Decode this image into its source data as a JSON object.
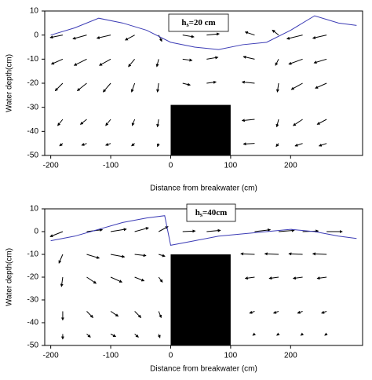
{
  "chart_data": [
    {
      "type": "quiver",
      "annotation": {
        "base": "h",
        "sub": "s",
        "text": "=20 cm"
      },
      "x_label": "Distance from breakwater (cm)",
      "y_label": "Water depth(cm)",
      "xlim": [
        -210,
        320
      ],
      "ylim": [
        -50,
        10
      ],
      "xticks": [
        -200,
        -100,
        0,
        100,
        200
      ],
      "yticks": [
        10,
        0,
        -10,
        -20,
        -30,
        -40,
        -50
      ],
      "surface": {
        "color": "#3b3bb5",
        "x": [
          -200,
          -160,
          -120,
          -80,
          -40,
          0,
          40,
          80,
          120,
          160,
          200,
          240,
          280,
          310
        ],
        "y": [
          0,
          3,
          7,
          5,
          2,
          -3,
          -5,
          -6,
          -4,
          -3,
          2,
          8,
          5,
          4
        ]
      },
      "structure": {
        "x": [
          0,
          100
        ],
        "y": [
          -50,
          -29
        ],
        "color": "#000000"
      },
      "vectors": {
        "color": "#000000",
        "x": [
          -180,
          -140,
          -100,
          -60,
          -20,
          20,
          60,
          140,
          180,
          220,
          260,
          -180,
          -140,
          -100,
          -60,
          -20,
          20,
          60,
          140,
          180,
          220,
          260,
          -180,
          -140,
          -100,
          -60,
          -20,
          20,
          60,
          140,
          180,
          220,
          260,
          -180,
          -140,
          -100,
          -60,
          -20,
          140,
          180,
          220,
          260,
          -180,
          -140,
          -100,
          -60,
          -20,
          140,
          180,
          220,
          260
        ],
        "y": [
          0,
          0,
          0,
          0,
          0,
          0,
          0,
          0,
          0,
          0,
          0,
          -10,
          -10,
          -10,
          -10,
          -10,
          -10,
          -10,
          -10,
          -10,
          -10,
          -10,
          -20,
          -20,
          -20,
          -20,
          -20,
          -20,
          -20,
          -20,
          -20,
          -20,
          -20,
          -35,
          -35,
          -35,
          -35,
          -35,
          -35,
          -35,
          -35,
          -35,
          -45,
          -45,
          -45,
          -45,
          -45,
          -45,
          -45,
          -45,
          -45
        ],
        "u": [
          -20,
          -22,
          -22,
          -15,
          5,
          18,
          20,
          -15,
          -10,
          -25,
          -22,
          -18,
          -20,
          -18,
          -10,
          -3,
          15,
          18,
          -18,
          -5,
          -22,
          -20,
          -12,
          -15,
          -12,
          -5,
          -2,
          12,
          15,
          -20,
          -2,
          -18,
          -18,
          -8,
          -10,
          -8,
          -4,
          -2,
          -20,
          -3,
          -15,
          -15,
          -5,
          -8,
          -8,
          -5,
          -2,
          -18,
          -4,
          -12,
          -12
        ],
        "v": [
          -4,
          -6,
          -5,
          -8,
          -10,
          -3,
          2,
          5,
          8,
          -6,
          -5,
          -8,
          -10,
          -10,
          -12,
          -12,
          -2,
          3,
          4,
          -10,
          -8,
          -6,
          -12,
          -12,
          -14,
          -14,
          -14,
          -3,
          2,
          2,
          -14,
          -10,
          -8,
          -10,
          -8,
          -10,
          -10,
          -12,
          -2,
          -12,
          -10,
          -8,
          -4,
          -3,
          -3,
          -4,
          -5,
          -1,
          -5,
          -4,
          -4
        ]
      }
    },
    {
      "type": "quiver",
      "annotation": {
        "base": "h",
        "sub": "s",
        "text": "=40cm"
      },
      "x_label": "Distance from breakwater (cm)",
      "y_label": "Water depth(cm)",
      "xlim": [
        -210,
        320
      ],
      "ylim": [
        -50,
        10
      ],
      "xticks": [
        -200,
        -100,
        0,
        100,
        200
      ],
      "yticks": [
        10,
        0,
        -10,
        -20,
        -30,
        -40,
        -50
      ],
      "surface": {
        "color": "#3b3bb5",
        "x": [
          -200,
          -160,
          -120,
          -80,
          -40,
          -10,
          0,
          40,
          80,
          120,
          160,
          200,
          240,
          280,
          310
        ],
        "y": [
          -4,
          -2,
          1,
          4,
          6,
          7,
          -6,
          -4,
          -2,
          -1,
          0,
          1,
          0,
          -2,
          -3
        ]
      },
      "structure": {
        "x": [
          0,
          100
        ],
        "y": [
          -50,
          -10
        ],
        "color": "#000000"
      },
      "vectors": {
        "color": "#000000",
        "x": [
          -180,
          -140,
          -100,
          -60,
          -20,
          20,
          60,
          140,
          180,
          220,
          260,
          -180,
          -140,
          -100,
          -60,
          -20,
          140,
          180,
          220,
          260,
          -180,
          -140,
          -100,
          -60,
          -20,
          140,
          180,
          220,
          260,
          -180,
          -140,
          -100,
          -60,
          -20,
          140,
          180,
          220,
          260,
          -180,
          -140,
          -100,
          -60,
          -20,
          140,
          180,
          220,
          260
        ],
        "y": [
          0,
          0,
          0,
          0,
          0,
          0,
          0,
          0,
          0,
          0,
          0,
          -10,
          -10,
          -10,
          -10,
          -10,
          -10,
          -10,
          -10,
          -10,
          -20,
          -20,
          -20,
          -20,
          -20,
          -20,
          -20,
          -20,
          -20,
          -35,
          -35,
          -35,
          -35,
          -35,
          -35,
          -35,
          -35,
          -35,
          -45,
          -45,
          -45,
          -45,
          -45,
          -45,
          -45,
          -45,
          -45
        ],
        "u": [
          -20,
          25,
          25,
          22,
          15,
          20,
          22,
          25,
          25,
          25,
          25,
          -6,
          20,
          22,
          18,
          10,
          -22,
          -22,
          -22,
          -22,
          -2,
          15,
          18,
          15,
          6,
          -15,
          -15,
          -15,
          -15,
          0,
          10,
          12,
          10,
          4,
          -8,
          -8,
          -8,
          -8,
          0,
          6,
          8,
          6,
          2,
          -3,
          -3,
          -3,
          -3
        ],
        "v": [
          -8,
          3,
          4,
          6,
          8,
          1,
          2,
          3,
          2,
          1,
          0,
          -14,
          -6,
          -4,
          -2,
          -3,
          1,
          1,
          1,
          1,
          -15,
          -10,
          -8,
          -6,
          -8,
          -2,
          -2,
          -2,
          -2,
          -14,
          -10,
          -8,
          -10,
          -10,
          -3,
          -3,
          -3,
          -3,
          -8,
          -5,
          -4,
          -5,
          -6,
          -2,
          -2,
          -2,
          -2
        ]
      }
    }
  ]
}
